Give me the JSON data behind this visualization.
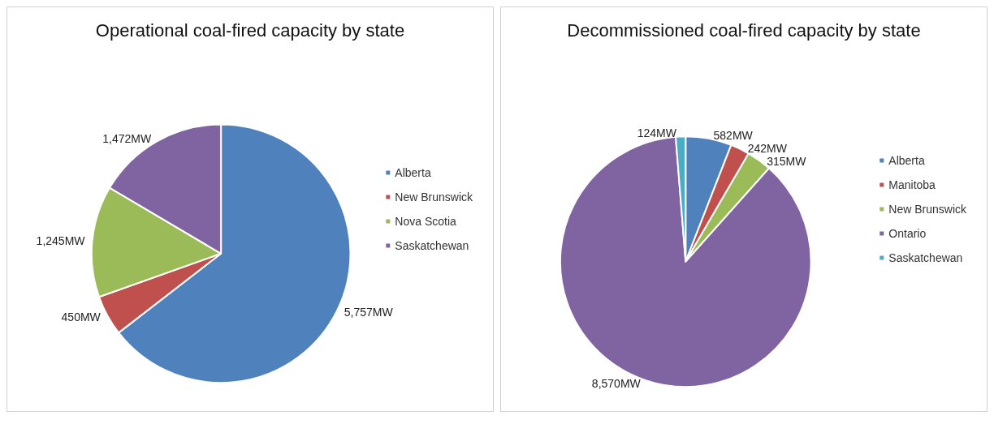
{
  "chart_data": [
    {
      "type": "pie",
      "title": "Operational coal-fired capacity by state",
      "categories": [
        "Alberta",
        "New Brunswick",
        "Nova Scotia",
        "Saskatchewan"
      ],
      "values": [
        5757,
        450,
        1245,
        1472
      ],
      "colors": [
        "#4f81bd",
        "#c0504d",
        "#9bbb59",
        "#8064a2"
      ],
      "value_labels": [
        "5,757MW",
        "450MW",
        "1,245MW",
        "1,472MW"
      ],
      "legend": "right"
    },
    {
      "type": "pie",
      "title": "Decommissioned coal-fired capacity by state",
      "categories": [
        "Alberta",
        "Manitoba",
        "New Brunswick",
        "Ontario",
        "Saskatchewan"
      ],
      "values": [
        582,
        242,
        315,
        8570,
        124
      ],
      "colors": [
        "#4f81bd",
        "#c0504d",
        "#9bbb59",
        "#8064a2",
        "#4bacc6"
      ],
      "value_labels": [
        "582MW",
        "242MW",
        "315MW",
        "8,570MW",
        "124MW"
      ],
      "legend": "right"
    }
  ]
}
